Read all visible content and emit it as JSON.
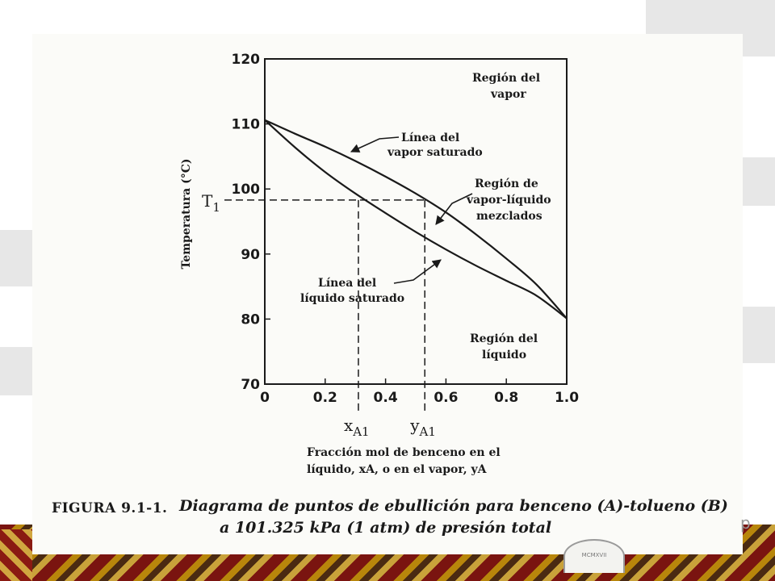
{
  "slide": {
    "watermark_seal": "MCMXVII",
    "cut_letter": "p"
  },
  "figure": {
    "caption_label": "FIGURA 9.1-1.",
    "caption_line1": "Diagrama de puntos de ebullición para benceno (A)-tolueno (B)",
    "caption_line2": "a 101.325 kPa (1 atm) de presión total"
  },
  "chart_data": {
    "type": "line",
    "title": "",
    "ylabel": "Temperatura (°C)",
    "xlabel_line1": "Fracción mol de benceno en el",
    "xlabel_line2": "líquido, xA, o en el vapor, yA",
    "xlim": [
      0,
      1.0
    ],
    "ylim": [
      70,
      120
    ],
    "xticks": [
      0,
      0.2,
      0.4,
      0.6,
      0.8,
      1.0
    ],
    "xtick_labels": [
      "0",
      "0.2",
      "0.4",
      "0.6",
      "0.8",
      "1.0"
    ],
    "yticks": [
      70,
      80,
      90,
      100,
      110,
      120
    ],
    "ytick_labels": [
      "70",
      "80",
      "90",
      "100",
      "110",
      "120"
    ],
    "grid": false,
    "series": [
      {
        "name": "Línea del líquido saturado",
        "x": [
          0,
          0.1,
          0.2,
          0.3,
          0.4,
          0.5,
          0.6,
          0.7,
          0.8,
          0.9,
          1.0
        ],
        "y": [
          110.6,
          106.4,
          102.6,
          99.3,
          96.3,
          93.4,
          90.7,
          88.2,
          85.9,
          83.6,
          80.1
        ]
      },
      {
        "name": "Línea del vapor saturado",
        "x": [
          0,
          0.1,
          0.2,
          0.3,
          0.4,
          0.5,
          0.6,
          0.7,
          0.8,
          0.9,
          1.0
        ],
        "y": [
          110.6,
          108.5,
          106.5,
          104.3,
          101.9,
          99.3,
          96.4,
          93.0,
          89.3,
          85.3,
          80.1
        ]
      }
    ],
    "t1": {
      "label": "T1",
      "temperature": 98.3,
      "x_A1": 0.31,
      "y_A1": 0.53,
      "x_label": "xA1",
      "y_label": "yA1"
    },
    "annotations": {
      "vapor_region": [
        "Región del",
        "vapor"
      ],
      "vapor_line": [
        "Línea del",
        "vapor saturado"
      ],
      "mixed_region": [
        "Región de",
        "vapor-líquido",
        "mezclados"
      ],
      "liquid_line": [
        "Línea del",
        "líquido saturado"
      ],
      "liquid_region": [
        "Región del",
        "líquido"
      ]
    }
  }
}
